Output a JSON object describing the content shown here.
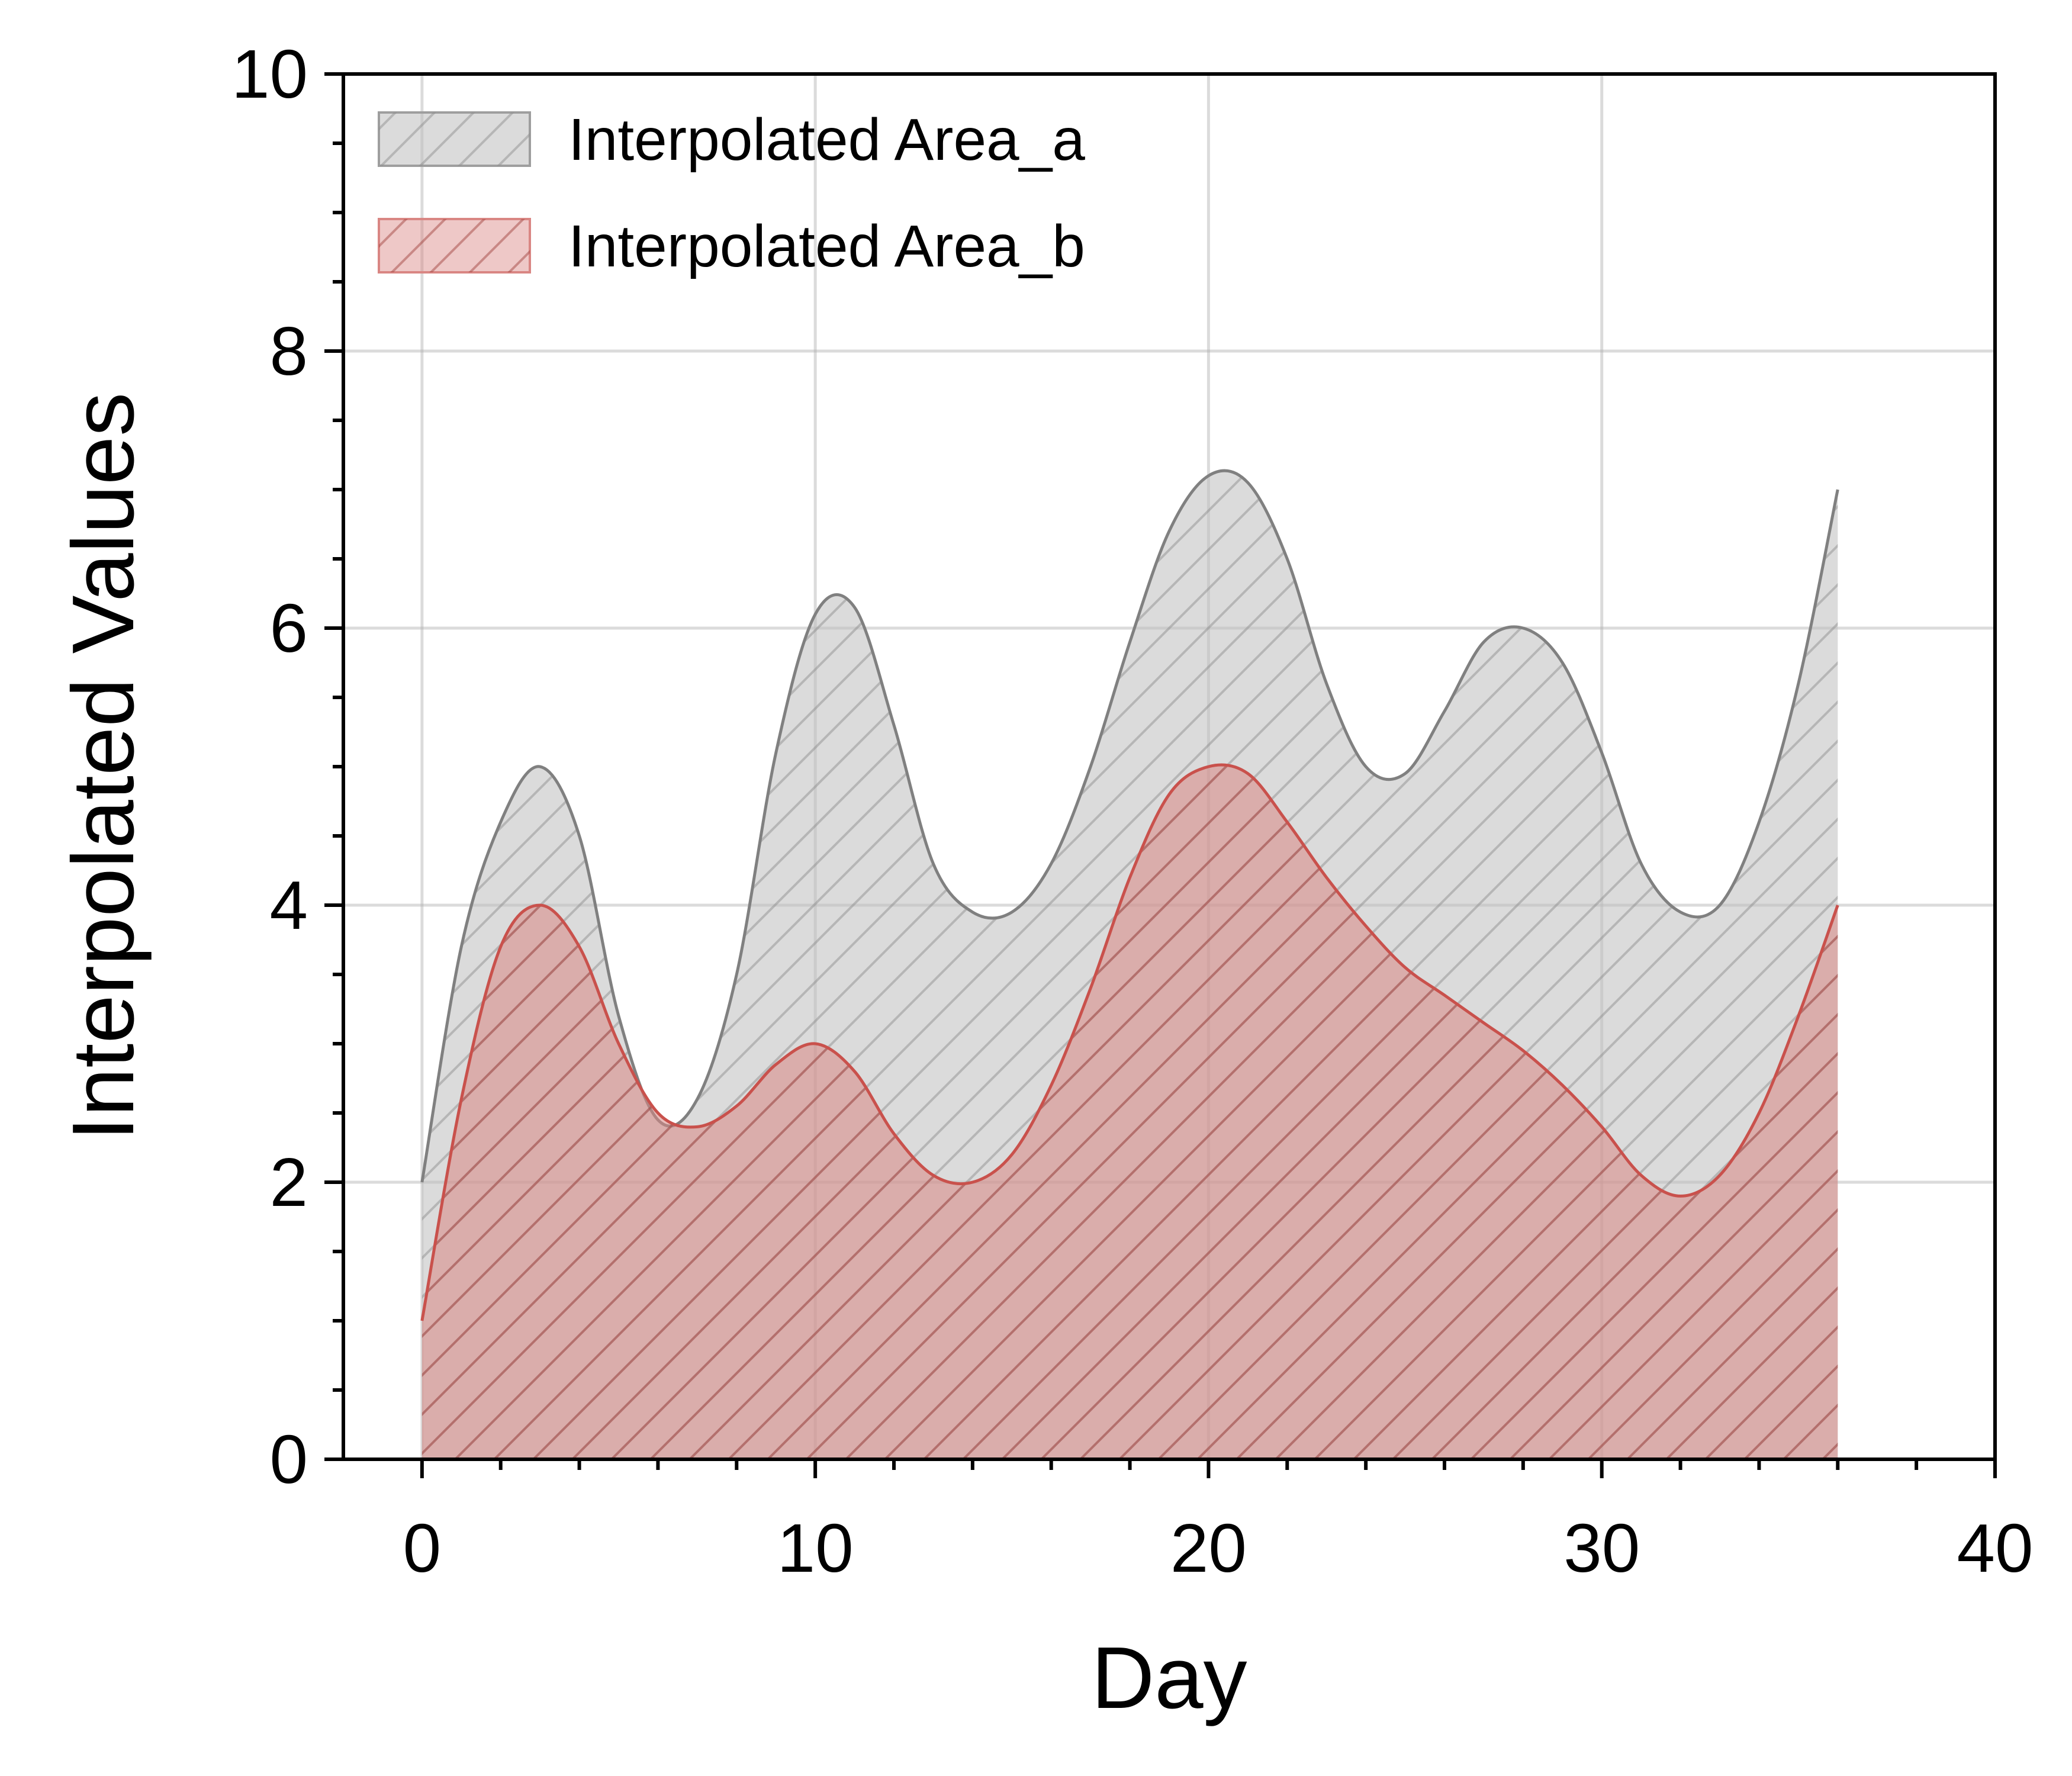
{
  "chart_data": {
    "type": "area",
    "xlabel": "Day",
    "ylabel": "Interpolated Values",
    "xlim": [
      -2,
      40
    ],
    "ylim": [
      0,
      10
    ],
    "x_ticks": [
      0,
      10,
      20,
      30,
      40
    ],
    "y_ticks": [
      0,
      2,
      4,
      6,
      8,
      10
    ],
    "x_tick_labels": [
      "0",
      "10",
      "20",
      "30",
      "40"
    ],
    "y_tick_labels": [
      "0",
      "2",
      "4",
      "6",
      "8",
      "10"
    ],
    "x_minor_step": 2,
    "y_minor_step": 0.5,
    "grid": true,
    "legend_position": "upper-left",
    "hatch": "diagonal",
    "series": [
      {
        "name": "Interpolated Area_a",
        "color": "#808080",
        "fill": "#bdbdbd",
        "x": [
          0,
          1,
          2,
          3,
          4,
          5,
          6,
          7,
          8,
          9,
          10,
          11,
          12,
          13,
          14,
          15,
          16,
          17,
          18,
          19,
          20,
          21,
          22,
          23,
          24,
          25,
          26,
          27,
          28,
          29,
          30,
          31,
          32,
          33,
          34,
          35,
          36
        ],
        "values": [
          2.0,
          3.7,
          4.6,
          5.0,
          4.5,
          3.2,
          2.45,
          2.6,
          3.5,
          5.1,
          6.1,
          6.15,
          5.3,
          4.3,
          3.95,
          3.95,
          4.3,
          5.0,
          5.9,
          6.7,
          7.1,
          7.05,
          6.5,
          5.6,
          5.0,
          4.95,
          5.4,
          5.9,
          6.0,
          5.75,
          5.1,
          4.3,
          3.95,
          4.0,
          4.6,
          5.6,
          7.0
        ]
      },
      {
        "name": "Interpolated Area_b",
        "color": "#c9514c",
        "fill": "#d98683",
        "x": [
          0,
          1,
          2,
          3,
          4,
          5,
          6,
          7,
          8,
          9,
          10,
          11,
          12,
          13,
          14,
          15,
          16,
          17,
          18,
          19,
          20,
          21,
          22,
          23,
          24,
          25,
          26,
          27,
          28,
          29,
          30,
          31,
          32,
          33,
          34,
          35,
          36
        ],
        "values": [
          1.0,
          2.6,
          3.7,
          4.0,
          3.7,
          3.0,
          2.5,
          2.4,
          2.55,
          2.85,
          3.0,
          2.8,
          2.35,
          2.05,
          2.0,
          2.2,
          2.7,
          3.4,
          4.2,
          4.8,
          5.0,
          4.95,
          4.6,
          4.2,
          3.85,
          3.55,
          3.35,
          3.15,
          2.95,
          2.7,
          2.4,
          2.05,
          1.9,
          2.05,
          2.5,
          3.2,
          4.0
        ]
      }
    ]
  }
}
